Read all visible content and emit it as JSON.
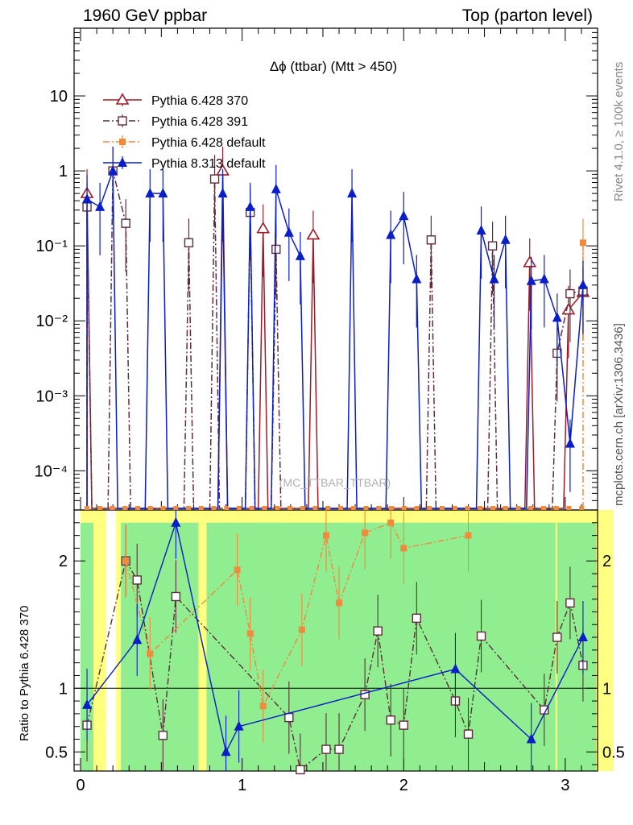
{
  "header": {
    "left": "1960 GeV ppbar",
    "right": "Top (parton level)"
  },
  "side": {
    "rivet": "Rivet 4.1.0, ≥ 100k events",
    "mcplots": "mcplots.cern.ch [arXiv:1306.3436]"
  },
  "chart_data": {
    "type": "line",
    "title": "Δϕ (ttbar) (Mtt > 450)",
    "watermark": "(MC_TTBAR_TTBAR)",
    "xlabel": "",
    "ylabel": "",
    "ratio_ylabel": "Ratio to Pythia 6.428 370",
    "log_y": true,
    "xlim": [
      -0.04,
      3.2
    ],
    "ylim": [
      3e-05,
      80
    ],
    "ratio_ylim": [
      0.35,
      2.4
    ],
    "x_ticks": [
      "0",
      "1",
      "2",
      "3"
    ],
    "y_ticks": [
      "10⁻⁴",
      "10⁻³",
      "10⁻²",
      "10⁻¹",
      "1",
      "10"
    ],
    "ratio_ticks": [
      "0.5",
      "1",
      "2"
    ],
    "legend_position": "top-left",
    "series": [
      {
        "name": "Pythia 6.428 370",
        "color": "#9b1c27",
        "marker": "open-triangle",
        "line": "solid",
        "x": [
          0.04,
          0.88,
          1.13,
          1.44,
          2.78,
          3.02,
          3.11
        ],
        "y": [
          0.5,
          1.0,
          0.17,
          0.14,
          0.06,
          0.014,
          0.024
        ]
      },
      {
        "name": "Pythia 6.428 391",
        "color": "#5e2d3b",
        "marker": "open-square",
        "line": "dashdot",
        "x": [
          0.04,
          0.2,
          0.28,
          0.67,
          0.83,
          1.05,
          1.21,
          2.17,
          2.55,
          2.95,
          3.03,
          3.11
        ],
        "y": [
          0.33,
          1.0,
          0.2,
          0.11,
          0.78,
          0.28,
          0.09,
          0.12,
          0.1,
          0.0037,
          0.023,
          0.025
        ]
      },
      {
        "name": "Pythia 6.428 default",
        "color": "#f08a3c",
        "marker": "filled-square",
        "line": "dashdot",
        "x": [
          3.11
        ],
        "y": [
          0.11
        ]
      },
      {
        "name": "Pythia 8.313 default",
        "color": "#0a1ec8",
        "marker": "filled-triangle",
        "line": "solid",
        "x": [
          0.04,
          0.12,
          0.2,
          0.43,
          0.51,
          0.88,
          1.05,
          1.21,
          1.29,
          1.36,
          1.68,
          1.92,
          2.0,
          2.08,
          2.48,
          2.56,
          2.63,
          2.79,
          2.87,
          2.95,
          3.03,
          3.11
        ],
        "y": [
          0.42,
          0.33,
          1.0,
          0.5,
          0.5,
          0.5,
          0.33,
          0.57,
          0.15,
          0.073,
          0.5,
          0.14,
          0.25,
          0.036,
          0.16,
          0.036,
          0.12,
          0.034,
          0.036,
          0.011,
          0.00023,
          0.03
        ]
      }
    ],
    "ratio_series": [
      {
        "name": "Pythia 6.428 391",
        "x": [
          0.04,
          0.28,
          0.35,
          0.51,
          0.59,
          1.29,
          1.36,
          1.52,
          1.6,
          1.76,
          1.84,
          1.92,
          2.0,
          2.08,
          2.32,
          2.4,
          2.48,
          2.87,
          2.95,
          3.03,
          3.11
        ],
        "y": [
          0.71,
          2.0,
          1.85,
          0.63,
          1.72,
          0.77,
          0.36,
          0.52,
          0.52,
          0.95,
          1.45,
          0.75,
          0.71,
          1.55,
          0.9,
          0.64,
          1.41,
          0.83,
          1.4,
          1.67,
          1.18
        ]
      },
      {
        "name": "Pythia 6.428 default",
        "x": [
          0.28,
          0.43,
          0.97,
          1.05,
          1.13,
          1.37,
          1.52,
          1.6,
          1.76,
          1.92,
          2.0,
          2.4
        ],
        "y": [
          2.0,
          1.27,
          1.93,
          1.43,
          0.86,
          1.46,
          2.2,
          1.67,
          2.22,
          2.3,
          2.1,
          2.2
        ]
      },
      {
        "name": "Pythia 8.313 default",
        "x": [
          0.04,
          0.35,
          0.59,
          0.9,
          0.98,
          2.32,
          2.79,
          3.11
        ],
        "y": [
          0.87,
          1.38,
          2.3,
          0.5,
          0.7,
          1.15,
          0.6,
          1.4
        ]
      }
    ]
  }
}
